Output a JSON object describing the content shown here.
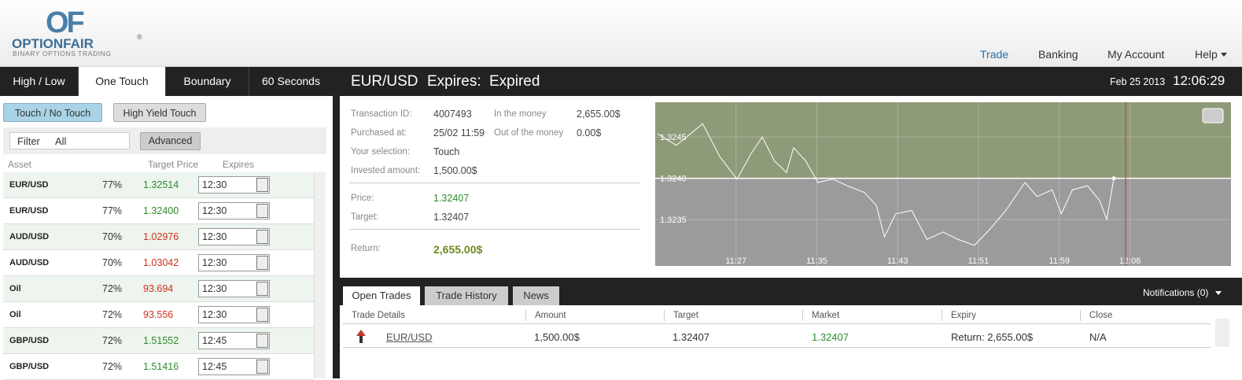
{
  "header": {
    "logo": "OF",
    "brand": "OPTIONFAIR",
    "registered": "®",
    "tagline": "BINARY OPTIONS TRADING",
    "nav": [
      "Trade",
      "Banking",
      "My Account",
      "Help"
    ]
  },
  "left_panel": {
    "tabs": [
      "High / Low",
      "One Touch",
      "Boundary",
      "60 Seconds"
    ],
    "subtabs": [
      "Touch / No Touch",
      "High Yield Touch"
    ],
    "filter_label": "Filter",
    "filter_value": "All",
    "advanced": "Advanced",
    "columns": [
      "Asset",
      "Target Price",
      "Expires"
    ],
    "rows": [
      {
        "asset": "EUR/USD",
        "payout": "77%",
        "target": "1.32514",
        "expires": "12:30",
        "color": "#2e8b2e"
      },
      {
        "asset": "EUR/USD",
        "payout": "77%",
        "target": "1.32400",
        "expires": "12:30",
        "color": "#2e8b2e"
      },
      {
        "asset": "AUD/USD",
        "payout": "70%",
        "target": "1.02976",
        "expires": "12:30",
        "color": "#d0301c"
      },
      {
        "asset": "AUD/USD",
        "payout": "70%",
        "target": "1.03042",
        "expires": "12:30",
        "color": "#d0301c"
      },
      {
        "asset": "Oil",
        "payout": "72%",
        "target": "93.694",
        "expires": "12:30",
        "color": "#d0301c"
      },
      {
        "asset": "Oil",
        "payout": "72%",
        "target": "93.556",
        "expires": "12:30",
        "color": "#d0301c"
      },
      {
        "asset": "GBP/USD",
        "payout": "72%",
        "target": "1.51552",
        "expires": "12:45",
        "color": "#2e8b2e"
      },
      {
        "asset": "GBP/USD",
        "payout": "72%",
        "target": "1.51416",
        "expires": "12:45",
        "color": "#2e8b2e"
      }
    ]
  },
  "trade_header": {
    "pair": "EUR/USD",
    "expires_label": "Expires:",
    "expires_value": "Expired",
    "date": "Feb 25 2013",
    "time": "12:06:29"
  },
  "details": {
    "transaction_id": {
      "label": "Transaction ID:",
      "value": "4007493"
    },
    "purchased_at": {
      "label": "Purchased at:",
      "value": "25/02 11:59"
    },
    "selection": {
      "label": "Your selection:",
      "value": "Touch"
    },
    "invested": {
      "label": "Invested amount:",
      "value": "1,500.00$"
    },
    "in_the_money": {
      "label": "In the money",
      "value": "2,655.00$"
    },
    "out_of_the_money": {
      "label": "Out of the money",
      "value": "0.00$"
    },
    "price": {
      "label": "Price:",
      "value": "1.32407"
    },
    "target": {
      "label": "Target:",
      "value": "1.32407"
    },
    "return": {
      "label": "Return:",
      "value": "2,655.00$"
    }
  },
  "chart": {
    "type": "line",
    "color": "#ffffff",
    "above_color": "#8e9b78",
    "below_color": "#9b9b9b",
    "x": [
      679.2,
      681.1,
      683.7,
      685.4,
      687.1,
      688.5,
      689.6,
      690.8,
      692.0,
      692.7,
      693.9,
      695.1,
      696.6,
      698.2,
      699.7,
      700.9,
      701.7,
      702.8,
      704.4,
      705.9,
      707.5,
      709.0,
      710.6,
      712.1,
      713.7,
      715.6,
      716.8,
      718.3,
      719.2,
      720.3,
      721.8,
      723.0,
      723.7,
      724.4
    ],
    "values": [
      1.32454,
      1.3244,
      1.32466,
      1.32426,
      1.32399,
      1.3243,
      1.3245,
      1.32421,
      1.32407,
      1.32437,
      1.32421,
      1.32395,
      1.32399,
      1.3239,
      1.32383,
      1.32367,
      1.32329,
      1.32357,
      1.32361,
      1.32326,
      1.32335,
      1.32326,
      1.32319,
      1.32338,
      1.32361,
      1.32395,
      1.32378,
      1.32386,
      1.32357,
      1.32386,
      1.32391,
      1.32373,
      1.3235,
      1.324
    ],
    "xlim": [
      679,
      736
    ],
    "ylim": [
      1.32294,
      1.32492
    ],
    "xticks": [
      {
        "value": 687,
        "label": "11:27"
      },
      {
        "value": 695,
        "label": "11:35"
      },
      {
        "value": 703,
        "label": "11:43"
      },
      {
        "value": 711,
        "label": "11:51"
      },
      {
        "value": 719,
        "label": "11:59"
      },
      {
        "value": 726,
        "label": "12:06"
      }
    ],
    "yticks": [
      1.3245,
      {
        "value": 1.324,
        "label": "1.3240"
      },
      1.3235
    ]
  },
  "trades": {
    "tabs": [
      "Open Trades",
      "Trade History",
      "News"
    ],
    "notifications": "Notifications (0)",
    "columns": [
      "Trade Details",
      "Amount",
      "Target",
      "Market",
      "Expiry",
      "Close"
    ],
    "rows": [
      {
        "asset": "EUR/USD",
        "amount": "1,500.00$",
        "target": "1.32407",
        "market": "1.32407",
        "expiry": "Return: 2,655.00$",
        "close": "N/A"
      }
    ]
  }
}
